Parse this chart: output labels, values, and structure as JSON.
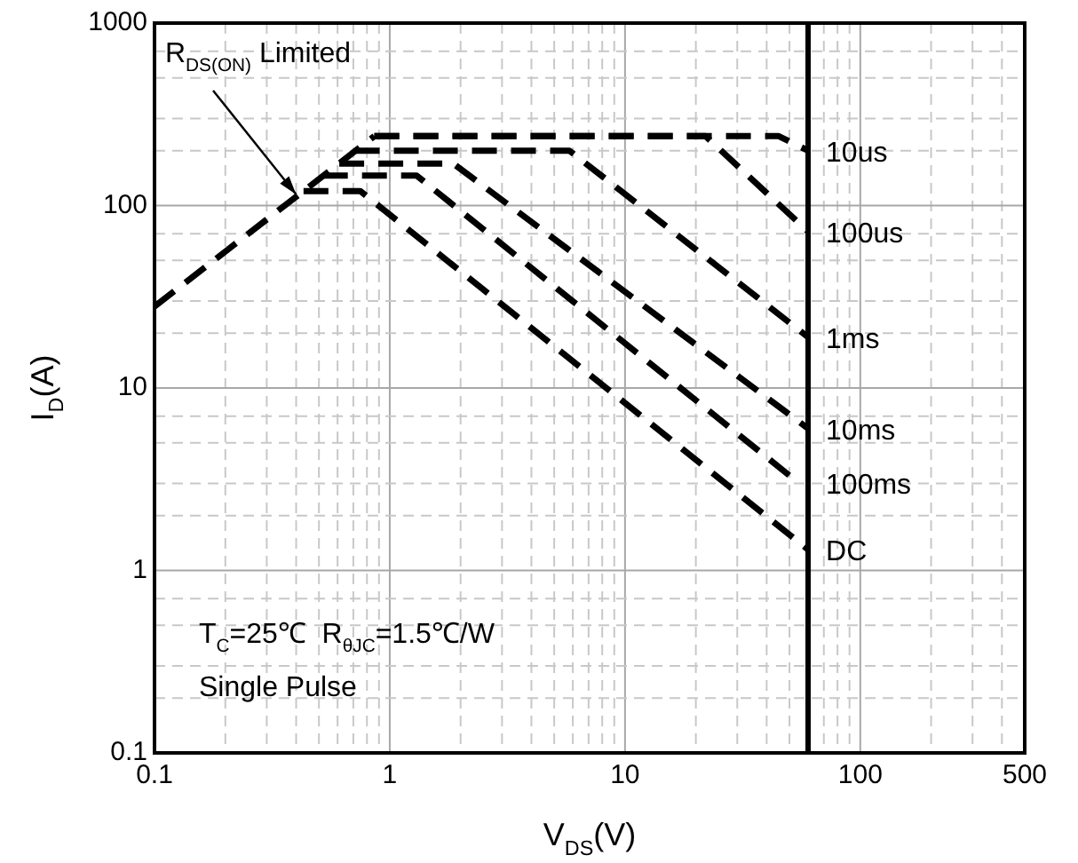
{
  "chart_data": {
    "type": "line",
    "xlabel": "V$_{DS}$(V)",
    "ylabel": "I$_{D}$(A)",
    "log": "xy",
    "grid": true,
    "legend": false,
    "marker": "none",
    "line_style": "dashed",
    "xlim": [
      0.1,
      500
    ],
    "ylim": [
      0.1,
      1000
    ],
    "xticks": [
      0.1,
      {
        "value": 0.2,
        "label": null
      },
      {
        "value": 0.3,
        "label": null
      },
      {
        "value": 0.4,
        "label": null
      },
      {
        "value": 0.5,
        "label": null
      },
      {
        "value": 0.6,
        "label": null
      },
      {
        "value": 0.7,
        "label": null
      },
      {
        "value": 0.8,
        "label": null
      },
      {
        "value": 0.9,
        "label": null
      },
      1,
      {
        "value": 2,
        "label": null
      },
      {
        "value": 3,
        "label": null
      },
      {
        "value": 4,
        "label": null
      },
      {
        "value": 5,
        "label": null
      },
      {
        "value": 6,
        "label": null
      },
      {
        "value": 7,
        "label": null
      },
      {
        "value": 8,
        "label": null
      },
      {
        "value": 9,
        "label": null
      },
      10,
      {
        "value": 20,
        "label": null
      },
      {
        "value": 30,
        "label": null
      },
      {
        "value": 40,
        "label": null
      },
      {
        "value": 50,
        "label": null
      },
      {
        "value": 60,
        "label": null
      },
      {
        "value": 70,
        "label": null
      },
      {
        "value": 80,
        "label": null
      },
      {
        "value": 90,
        "label": null
      },
      100,
      {
        "value": 200,
        "label": null
      },
      {
        "value": 300,
        "label": null
      },
      {
        "value": 400,
        "label": null
      },
      500
    ],
    "yticks": [
      0.1,
      {
        "value": 0.2,
        "label": null
      },
      {
        "value": 0.3,
        "label": null
      },
      {
        "value": 0.5,
        "label": null
      },
      {
        "value": 0.7,
        "label": null
      },
      1,
      {
        "value": 2,
        "label": null
      },
      {
        "value": 3,
        "label": null
      },
      {
        "value": 5,
        "label": null
      },
      {
        "value": 7,
        "label": null
      },
      10,
      {
        "value": 20,
        "label": null
      },
      {
        "value": 30,
        "label": null
      },
      {
        "value": 50,
        "label": null
      },
      {
        "value": 70,
        "label": null
      },
      100,
      {
        "value": 200,
        "label": null
      },
      {
        "value": 300,
        "label": null
      },
      {
        "value": 500,
        "label": null
      },
      {
        "value": 700,
        "label": null
      },
      1000
    ],
    "series": [
      {
        "color": "#000000",
        "x": [
          0.1,
          0.86
        ],
        "values": [
          28,
          240
        ]
      },
      {
        "name": "10us",
        "color": "#000000",
        "x": [
          0.86,
          45,
          60
        ],
        "values": [
          240,
          240,
          200
        ]
      },
      {
        "name": "100us",
        "color": "#000000",
        "x": [
          0.86,
          22,
          60
        ],
        "values": [
          240,
          240,
          72
        ]
      },
      {
        "name": "1ms",
        "color": "#000000",
        "x": [
          0.71,
          5.8,
          60
        ],
        "values": [
          200,
          200,
          19
        ]
      },
      {
        "name": "10ms",
        "color": "#000000",
        "x": [
          0.61,
          1.86,
          60
        ],
        "values": [
          170,
          170,
          6
        ]
      },
      {
        "name": "100ms",
        "color": "#000000",
        "x": [
          0.52,
          1.3,
          55
        ],
        "values": [
          146,
          146,
          3
        ]
      },
      {
        "name": "DC",
        "color": "#000000",
        "x": [
          0.43,
          0.75,
          60
        ],
        "values": [
          120,
          120,
          1.3
        ]
      }
    ],
    "ref_lines": [
      {
        "axis": "x",
        "value": 60,
        "color": "#000000",
        "line_style": "solid"
      }
    ],
    "annotations": [
      {
        "text": "R$_{DS(ON)}$ Limited",
        "x": 0.4,
        "y": 115
      },
      "T$_{C}$=25℃  R$_{θJC}$=1.5℃/W",
      "Single Pulse"
    ]
  }
}
